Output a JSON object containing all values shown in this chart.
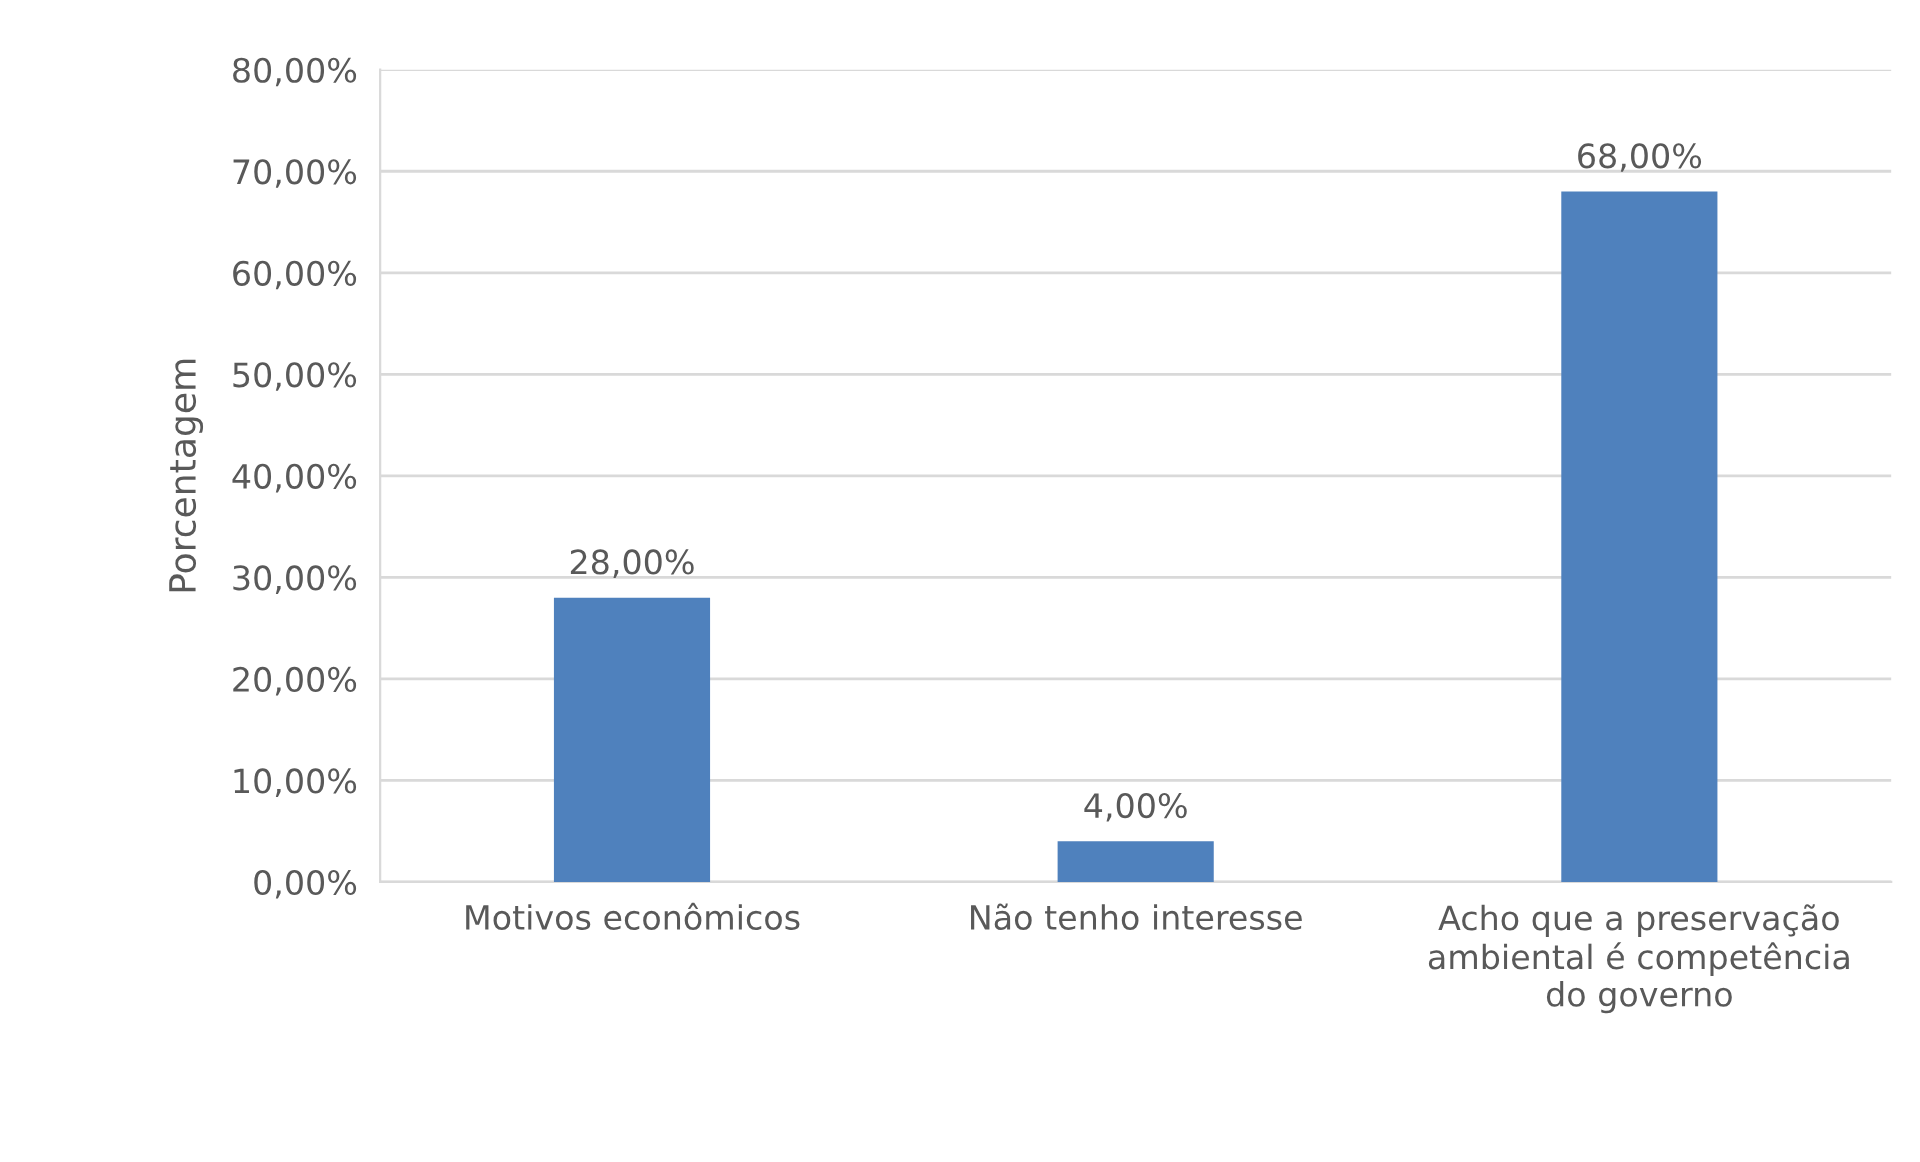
{
  "chart_data": {
    "type": "bar",
    "ylabel": "Porcentagem",
    "categories": [
      "Motivos econômicos",
      "Não tenho interesse",
      "Acho que a preservação ambiental é competência do governo"
    ],
    "values": [
      28,
      4,
      68
    ],
    "color": "#4f81bd",
    "value_labels": [
      "28,00%",
      "4,00%",
      "68,00%"
    ],
    "ylim": [
      0,
      80
    ],
    "yticks": [
      {
        "value": 0,
        "label": "0,00%"
      },
      {
        "value": 10,
        "label": "10,00%"
      },
      {
        "value": 20,
        "label": "20,00%"
      },
      {
        "value": 30,
        "label": "30,00%"
      },
      {
        "value": 40,
        "label": "40,00%"
      },
      {
        "value": 50,
        "label": "50,00%"
      },
      {
        "value": 60,
        "label": "60,00%"
      },
      {
        "value": 70,
        "label": "70,00%"
      },
      {
        "value": 80,
        "label": "80,00%"
      }
    ],
    "grid": "y",
    "legend": false
  }
}
